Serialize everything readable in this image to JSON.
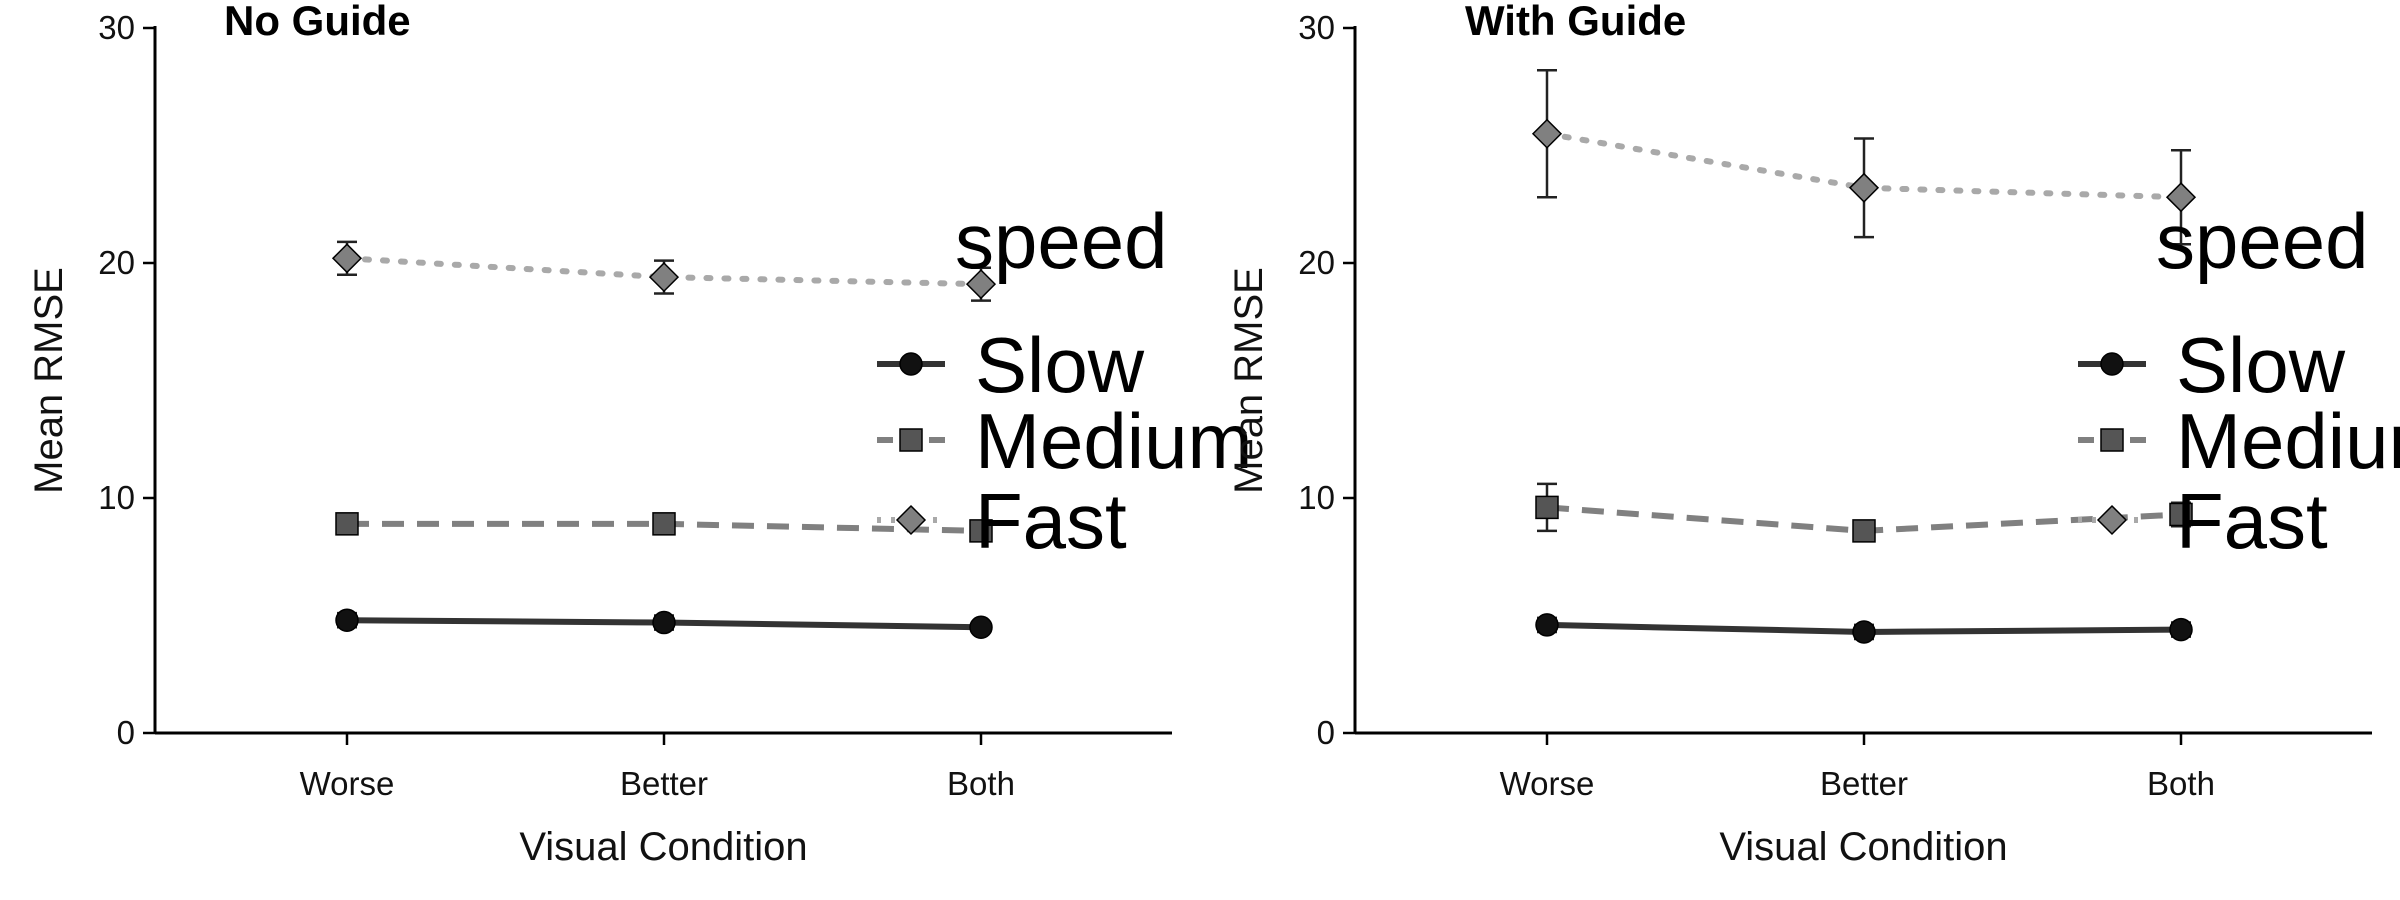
{
  "chart_data": [
    {
      "type": "line",
      "title": "No Guide",
      "xlabel": "Visual Condition",
      "ylabel": "Mean RMSE",
      "categories": [
        "Worse",
        "Better",
        "Both"
      ],
      "ylim": [
        0,
        30
      ],
      "yticks": [
        0,
        10,
        20,
        30
      ],
      "grid": false,
      "legend": {
        "title": "speed",
        "placement": "right"
      },
      "series": [
        {
          "name": "Slow",
          "marker": "circle",
          "line_style": "solid",
          "line_color": "#333333",
          "marker_color": "#111111",
          "values": [
            4.8,
            4.7,
            4.5
          ],
          "errors": [
            0.3,
            0.3,
            0.2
          ]
        },
        {
          "name": "Medium",
          "marker": "square",
          "line_style": "dashed",
          "line_color": "#808080",
          "marker_color": "#555555",
          "values": [
            8.9,
            8.9,
            8.6
          ],
          "errors": [
            0.3,
            0.3,
            0.3
          ]
        },
        {
          "name": "Fast",
          "marker": "diamond",
          "line_style": "dotted",
          "line_color": "#a9a9a9",
          "marker_color": "#808080",
          "values": [
            20.2,
            19.4,
            19.1
          ],
          "errors": [
            0.7,
            0.7,
            0.7
          ]
        }
      ]
    },
    {
      "type": "line",
      "title": "With Guide",
      "xlabel": "Visual Condition",
      "ylabel": "Mean RMSE",
      "categories": [
        "Worse",
        "Better",
        "Both"
      ],
      "ylim": [
        0,
        30
      ],
      "yticks": [
        0,
        10,
        20,
        30
      ],
      "grid": false,
      "legend": {
        "title": "speed",
        "placement": "right"
      },
      "series": [
        {
          "name": "Slow",
          "marker": "circle",
          "line_style": "solid",
          "line_color": "#333333",
          "marker_color": "#111111",
          "values": [
            4.6,
            4.3,
            4.4
          ],
          "errors": [
            0.3,
            0.3,
            0.3
          ]
        },
        {
          "name": "Medium",
          "marker": "square",
          "line_style": "dashed",
          "line_color": "#808080",
          "marker_color": "#555555",
          "values": [
            9.6,
            8.6,
            9.3
          ],
          "errors": [
            1.0,
            0.4,
            0.5
          ]
        },
        {
          "name": "Fast",
          "marker": "diamond",
          "line_style": "dotted",
          "line_color": "#a9a9a9",
          "marker_color": "#808080",
          "values": [
            25.5,
            23.2,
            22.8
          ],
          "errors": [
            2.7,
            2.1,
            2.0
          ]
        }
      ]
    }
  ]
}
